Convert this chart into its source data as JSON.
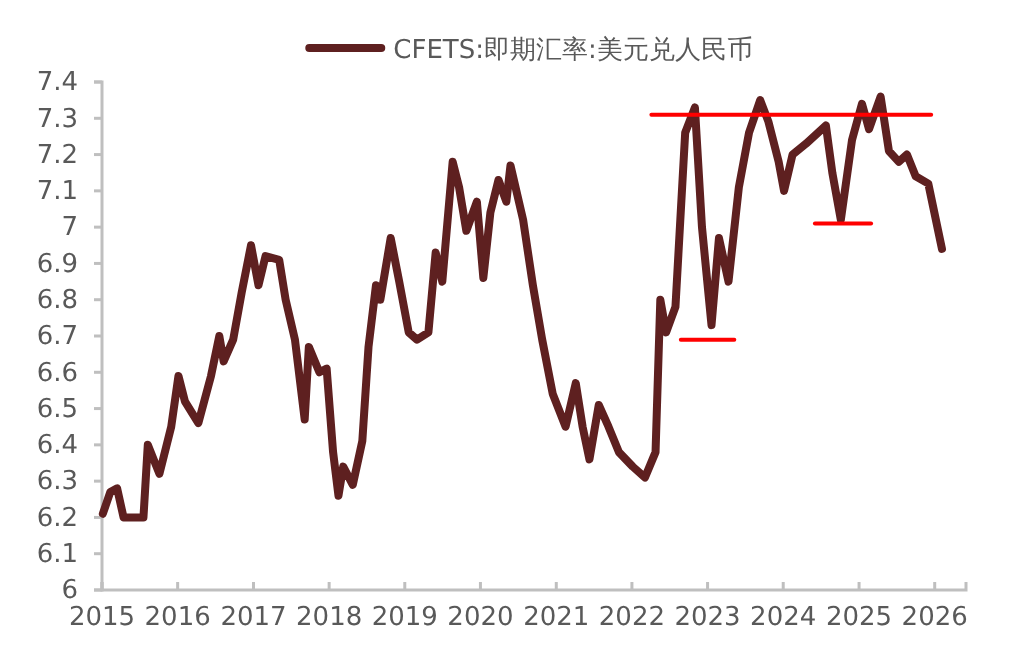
{
  "chart_data": {
    "type": "line",
    "x": [
      "2015-01-05",
      "2015-02-10",
      "2015-03-15",
      "2015-04-15",
      "2015-07-20",
      "2015-08-10",
      "2015-10-05",
      "2015-12-01",
      "2016-01-05",
      "2016-02-05",
      "2016-04-10",
      "2016-06-10",
      "2016-07-20",
      "2016-08-10",
      "2016-09-25",
      "2016-11-05",
      "2016-12-20",
      "2017-01-25",
      "2017-02-28",
      "2017-05-05",
      "2017-06-05",
      "2017-07-20",
      "2017-09-05",
      "2017-09-25",
      "2017-11-15",
      "2017-12-20",
      "2018-01-20",
      "2018-02-15",
      "2018-03-10",
      "2018-04-25",
      "2018-06-10",
      "2018-07-10",
      "2018-08-15",
      "2018-09-05",
      "2018-10-25",
      "2018-12-05",
      "2019-01-20",
      "2019-03-01",
      "2019-04-25",
      "2019-05-30",
      "2019-07-01",
      "2019-08-20",
      "2019-09-20",
      "2019-10-25",
      "2019-12-15",
      "2020-01-15",
      "2020-02-18",
      "2020-03-28",
      "2020-05-05",
      "2020-05-25",
      "2020-07-25",
      "2020-09-10",
      "2020-10-25",
      "2020-12-15",
      "2021-02-15",
      "2021-04-05",
      "2021-05-08",
      "2021-06-10",
      "2021-07-25",
      "2021-09-10",
      "2021-10-30",
      "2022-01-05",
      "2022-03-05",
      "2022-04-25",
      "2022-05-18",
      "2022-06-15",
      "2022-07-30",
      "2022-09-15",
      "2022-11-01",
      "2022-12-05",
      "2023-01-20",
      "2023-02-25",
      "2023-04-12",
      "2023-06-01",
      "2023-07-20",
      "2023-09-12",
      "2023-10-22",
      "2023-12-10",
      "2024-01-05",
      "2024-02-15",
      "2024-04-20",
      "2024-07-25",
      "2024-08-25",
      "2024-10-05",
      "2024-11-28",
      "2025-01-15",
      "2025-02-18",
      "2025-04-15",
      "2025-05-25",
      "2025-07-12",
      "2025-08-20",
      "2025-10-01",
      "2025-12-01",
      "2026-02-05"
    ],
    "series": [
      {
        "name": "CFETS:即期汇率:美元兑人民币",
        "color": "#5e2020",
        "values": [
          6.21,
          6.27,
          6.28,
          6.2,
          6.2,
          6.4,
          6.32,
          6.45,
          6.59,
          6.52,
          6.46,
          6.59,
          6.7,
          6.63,
          6.69,
          6.82,
          6.95,
          6.84,
          6.92,
          6.91,
          6.8,
          6.69,
          6.47,
          6.67,
          6.6,
          6.61,
          6.38,
          6.26,
          6.34,
          6.29,
          6.41,
          6.67,
          6.84,
          6.8,
          6.97,
          6.85,
          6.71,
          6.69,
          6.71,
          6.93,
          6.85,
          7.18,
          7.11,
          6.99,
          7.07,
          6.86,
          7.04,
          7.13,
          7.07,
          7.17,
          7.02,
          6.84,
          6.69,
          6.54,
          6.45,
          6.57,
          6.45,
          6.36,
          6.51,
          6.45,
          6.38,
          6.34,
          6.31,
          6.38,
          6.8,
          6.71,
          6.78,
          7.26,
          7.33,
          7.0,
          6.73,
          6.97,
          6.85,
          7.11,
          7.26,
          7.35,
          7.29,
          7.18,
          7.1,
          7.2,
          7.23,
          7.28,
          7.15,
          7.02,
          7.24,
          7.34,
          7.27,
          7.36,
          7.21,
          7.18,
          7.2,
          7.14,
          7.12,
          6.94
        ]
      },
      {
        "type": "line",
        "color": "#ff0000",
        "x": [
          "2022-04-05",
          "2025-12-15"
        ],
        "values": [
          7.31,
          7.31
        ]
      },
      {
        "type": "line",
        "color": "#ff0000",
        "x": [
          "2022-08-25",
          "2023-05-10"
        ],
        "values": [
          6.69,
          6.69
        ]
      },
      {
        "type": "line",
        "color": "#ff0000",
        "x": [
          "2024-06-02",
          "2025-02-28"
        ],
        "values": [
          7.01,
          7.01
        ]
      }
    ],
    "xlim": [
      "2015-01-01",
      "2026-06-01"
    ],
    "xticks": [
      "2015",
      "2016",
      "2017",
      "2018",
      "2019",
      "2020",
      "2021",
      "2022",
      "2023",
      "2024",
      "2025",
      "2026"
    ],
    "ylim": [
      6,
      7.4
    ],
    "yticks": [
      6,
      6.1,
      6.2,
      6.3,
      6.4,
      6.5,
      6.6,
      6.7,
      6.8,
      6.9,
      7,
      7.1,
      7.2,
      7.3,
      7.4
    ],
    "legend": "top",
    "grid": false
  }
}
